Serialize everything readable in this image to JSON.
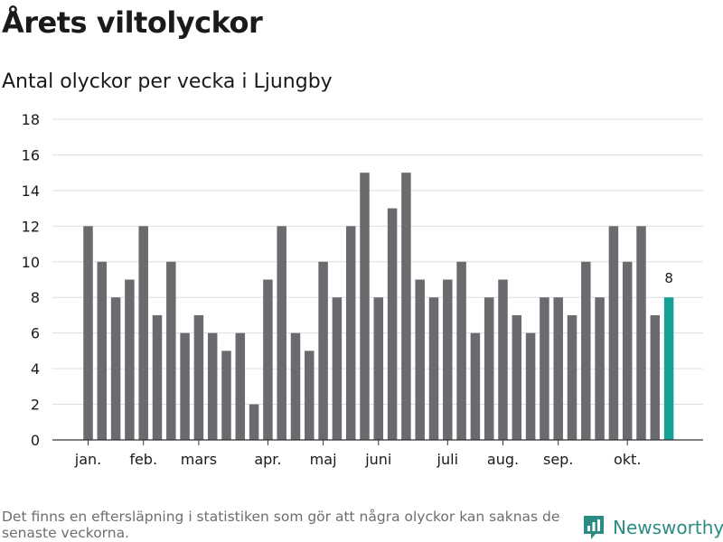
{
  "title": "Årets viltolyckor",
  "subtitle": "Antal olyckor per vecka i Ljungby",
  "footer": "Det finns en eftersläpning i statistiken som gör att några olyckor kan saknas de senaste veckorna.",
  "brand": "Newsworthy",
  "colors": {
    "bar": "#6b6a6f",
    "highlight": "#17a196",
    "grid": "#dedede",
    "brand": "#2b8c84"
  },
  "chart_data": {
    "type": "bar",
    "title": "Årets viltolyckor",
    "subtitle": "Antal olyckor per vecka i Ljungby",
    "ylim": [
      0,
      18
    ],
    "yticks": [
      0,
      2,
      4,
      6,
      8,
      10,
      12,
      14,
      16,
      18
    ],
    "grid": true,
    "values": [
      12,
      10,
      8,
      9,
      12,
      7,
      10,
      6,
      7,
      6,
      5,
      6,
      2,
      9,
      12,
      6,
      5,
      10,
      8,
      12,
      15,
      8,
      13,
      15,
      9,
      8,
      9,
      10,
      6,
      8,
      9,
      7,
      6,
      8,
      8,
      7,
      10,
      8,
      12,
      10,
      12,
      7,
      8
    ],
    "highlight_index": 42,
    "highlight_label": "8",
    "month_labels": [
      {
        "label": "jan.",
        "bar_index": 0
      },
      {
        "label": "feb.",
        "bar_index": 4
      },
      {
        "label": "mars",
        "bar_index": 8
      },
      {
        "label": "apr.",
        "bar_index": 13
      },
      {
        "label": "maj",
        "bar_index": 17
      },
      {
        "label": "juni",
        "bar_index": 21
      },
      {
        "label": "juli",
        "bar_index": 26
      },
      {
        "label": "aug.",
        "bar_index": 30
      },
      {
        "label": "sep.",
        "bar_index": 34
      },
      {
        "label": "okt.",
        "bar_index": 39
      }
    ]
  }
}
